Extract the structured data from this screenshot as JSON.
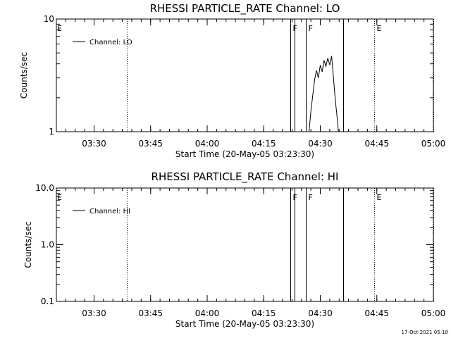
{
  "footer_timestamp": "17-Oct-2021 05:18",
  "x_axis": {
    "range_minutes": [
      -3.5,
      96.5
    ],
    "ticks": [
      {
        "label": "03:30",
        "t": 6.5
      },
      {
        "label": "03:45",
        "t": 21.5
      },
      {
        "label": "04:00",
        "t": 36.5
      },
      {
        "label": "04:15",
        "t": 51.5
      },
      {
        "label": "04:30",
        "t": 66.5
      },
      {
        "label": "04:45",
        "t": 81.5
      },
      {
        "label": "05:00",
        "t": 96.5
      }
    ]
  },
  "chart_data": [
    {
      "type": "line",
      "title": "RHESSI PARTICLE_RATE Channel: LO",
      "xlabel": "Start Time (20-May-05 03:23:30)",
      "ylabel": "Counts/sec",
      "yscale": "log",
      "ylim": [
        1,
        10
      ],
      "yticks": [
        {
          "label": "10",
          "v": 10
        },
        {
          "label": "1",
          "v": 1
        }
      ],
      "grid": false,
      "legend": {
        "placement": "top-left",
        "entries": [
          "Channel: LO"
        ]
      },
      "series": [
        {
          "name": "Channel: LO",
          "x_minutes_after_start": [
            63.5,
            64.0,
            64.5,
            65.0,
            65.5,
            66.0,
            66.5,
            67.0,
            67.5,
            68.0,
            68.5,
            69.0,
            69.5,
            70.0,
            70.5,
            71.0,
            71.3
          ],
          "y": [
            1.0,
            1.5,
            2.1,
            2.9,
            3.5,
            3.0,
            3.9,
            3.4,
            4.3,
            3.8,
            4.5,
            3.9,
            4.7,
            3.0,
            1.9,
            1.3,
            1.0
          ]
        }
      ],
      "vertical_lines": [
        {
          "t": 15.1,
          "style": "dotted",
          "label": ""
        },
        {
          "t": 58.5,
          "style": "solid",
          "label": "F"
        },
        {
          "t": 59.6,
          "style": "solid",
          "label": ""
        },
        {
          "t": 62.6,
          "style": "solid",
          "label": "F"
        },
        {
          "t": 72.6,
          "style": "solid",
          "label": ""
        },
        {
          "t": 80.8,
          "style": "dotted",
          "label": "E"
        },
        {
          "t": 96.5,
          "style": "dotted",
          "label": ""
        }
      ],
      "left_edge_label": "E"
    },
    {
      "type": "line",
      "title": "RHESSI PARTICLE_RATE Channel: HI",
      "xlabel": "Start Time (20-May-05 03:23:30)",
      "ylabel": "Counts/sec",
      "yscale": "log",
      "ylim": [
        0.1,
        10
      ],
      "yticks": [
        {
          "label": "10.0",
          "v": 10
        },
        {
          "label": "1.0",
          "v": 1
        },
        {
          "label": "0.1",
          "v": 0.1
        }
      ],
      "grid": false,
      "legend": {
        "placement": "top-left",
        "entries": [
          "Channel: HI"
        ]
      },
      "series": [
        {
          "name": "Channel: HI",
          "x_minutes_after_start": [],
          "y": []
        }
      ],
      "vertical_lines": [
        {
          "t": 15.1,
          "style": "dotted",
          "label": ""
        },
        {
          "t": 58.5,
          "style": "solid",
          "label": "F"
        },
        {
          "t": 59.6,
          "style": "solid",
          "label": ""
        },
        {
          "t": 62.6,
          "style": "solid",
          "label": "F"
        },
        {
          "t": 72.6,
          "style": "solid",
          "label": ""
        },
        {
          "t": 80.8,
          "style": "dotted",
          "label": "E"
        },
        {
          "t": 96.5,
          "style": "dotted",
          "label": ""
        }
      ],
      "left_edge_label": "E"
    }
  ]
}
